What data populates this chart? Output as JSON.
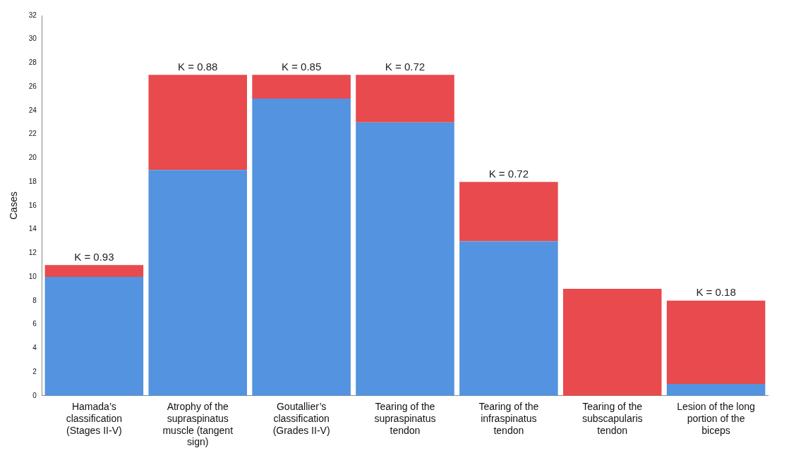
{
  "chart_data": {
    "type": "bar",
    "stacked": true,
    "ylabel": "Cases",
    "categories": [
      "Hamada’s classification (Stages II-V)",
      "Atrophy of the supraspinatus muscle (tangent sign)",
      "Goutallier’s classification (Grades II-V)",
      "Tearing of the supraspinatus tendon",
      "Tearing of the infraspinatus tendon",
      "Tearing of the subscapularis tendon",
      "Lesion of the long portion of the biceps"
    ],
    "series": [
      {
        "color": "#5393e0",
        "values": [
          10,
          19,
          25,
          23,
          13,
          0,
          1
        ]
      },
      {
        "color": "#e84a4d",
        "values": [
          1,
          8,
          2,
          4,
          5,
          9,
          7
        ]
      }
    ],
    "ylim": [
      0,
      32
    ],
    "yticks": [
      0,
      2,
      4,
      6,
      8,
      10,
      12,
      14,
      16,
      18,
      20,
      22,
      24,
      26,
      28,
      30,
      32
    ],
    "grid": false,
    "legend": false,
    "annotations": [
      {
        "text": "K = 0.93",
        "x": "Hamada’s classification (Stages II-V)",
        "y": 11
      },
      {
        "text": "K = 0.88",
        "x": "Atrophy of the supraspinatus muscle (tangent sign)",
        "y": 27
      },
      {
        "text": "K = 0.85",
        "x": "Goutallier’s classification (Grades II-V)",
        "y": 27
      },
      {
        "text": "K = 0.72",
        "x": "Tearing of the supraspinatus tendon",
        "y": 27
      },
      {
        "text": "K = 0.72",
        "x": "Tearing of the infraspinatus tendon",
        "y": 18
      },
      {
        "text": "K = 0.18",
        "x": "Lesion of the long portion of the biceps",
        "y": 8
      }
    ]
  }
}
